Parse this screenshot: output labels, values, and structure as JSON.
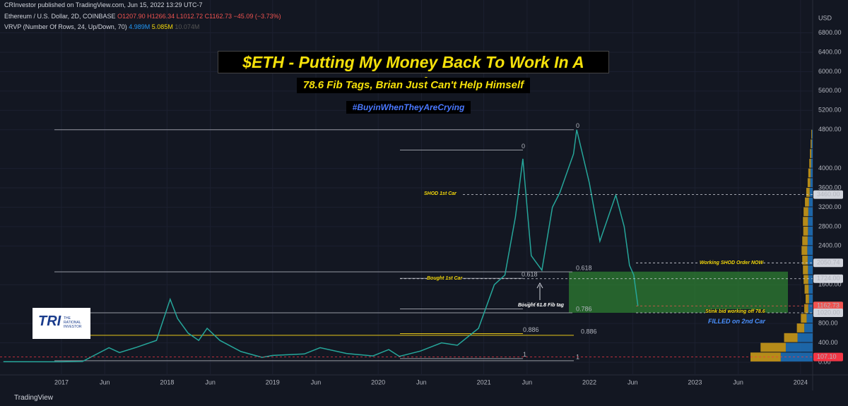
{
  "header": {
    "publisher": "CRInvestor published on TradingView.com, Jun 15, 2022 13:29 UTC-7",
    "symbol": "Ethereum / U.S. Dollar, 2D, COINBASE",
    "ohlc": "O1207.90 H1266.34 L1012.72 C1162.73 −45.09 (−3.73%)",
    "indicator": "VRVP (Number Of Rows, 24, Up/Down, 70)",
    "up_volume": "4.989M",
    "down_volume": "5.085M",
    "total_volume": "10.074M"
  },
  "footer": {
    "brand": "TradingView"
  },
  "logo": {
    "text": "TRI",
    "subtitle": "THE RATIONAL INVESTOR"
  },
  "chart_data": {
    "type": "line",
    "title": "$ETH - Putting My Money Back To Work In A Second Car",
    "subtitle": "78.6 Fib Tags, Brian Just Can't Help Himself",
    "hashtag": "#BuyinWhenTheyAreCrying",
    "y_unit": "USD",
    "annotations": [
      "SHOD 1st Car",
      "Bought 1st Car",
      "Bought 61.8 Fib tag",
      "Working SHOD Order NOW",
      "Stink bid working off 78.6",
      "FILLED on 2nd Car"
    ],
    "xlim": [
      2016.418,
      2024.115
    ],
    "xticks": [
      {
        "value": 2017,
        "label": "2017"
      },
      {
        "value": 2017.41,
        "label": "Jun"
      },
      {
        "value": 2018,
        "label": "2018"
      },
      {
        "value": 2018.41,
        "label": "Jun"
      },
      {
        "value": 2019,
        "label": "2019"
      },
      {
        "value": 2019.41,
        "label": "Jun"
      },
      {
        "value": 2020,
        "label": "2020"
      },
      {
        "value": 2020.41,
        "label": "Jun"
      },
      {
        "value": 2021,
        "label": "2021"
      },
      {
        "value": 2021.41,
        "label": "Jun"
      },
      {
        "value": 2022,
        "label": "2022"
      },
      {
        "value": 2022.41,
        "label": "Jun"
      },
      {
        "value": 2023,
        "label": "2023"
      },
      {
        "value": 2023.41,
        "label": "Jun"
      },
      {
        "value": 2024,
        "label": "2024"
      }
    ],
    "ylim": [
      -219,
      7187
    ],
    "yticks": [
      {
        "value": 0,
        "label": "0.00"
      },
      {
        "value": 400,
        "label": "400.00"
      },
      {
        "value": 800,
        "label": "800.00"
      },
      {
        "value": 1600,
        "label": "1600.00"
      },
      {
        "value": 2400,
        "label": "2400.00"
      },
      {
        "value": 2800,
        "label": "2800.00"
      },
      {
        "value": 3200,
        "label": "3200.00"
      },
      {
        "value": 3600,
        "label": "3600.00"
      },
      {
        "value": 4000,
        "label": "4000.00"
      },
      {
        "value": 4800,
        "label": "4800.00"
      },
      {
        "value": 5200,
        "label": "5200.00"
      },
      {
        "value": 5600,
        "label": "5600.00"
      },
      {
        "value": 6000,
        "label": "6000.00"
      },
      {
        "value": 6400,
        "label": "6400.00"
      },
      {
        "value": 6800,
        "label": "6800.00"
      }
    ],
    "series": [
      {
        "name": "ETHUSD",
        "color": "#26a69a",
        "x": [
          2016.45,
          2017.0,
          2017.2,
          2017.45,
          2017.55,
          2017.7,
          2017.9,
          2018.03,
          2018.1,
          2018.2,
          2018.3,
          2018.38,
          2018.5,
          2018.7,
          2018.9,
          2019.0,
          2019.3,
          2019.45,
          2019.7,
          2019.95,
          2020.1,
          2020.2,
          2020.4,
          2020.6,
          2020.75,
          2020.95,
          2021.1,
          2021.2,
          2021.3,
          2021.37,
          2021.45,
          2021.55,
          2021.65,
          2021.72,
          2021.85,
          2021.88,
          2022.0,
          2022.1,
          2022.25,
          2022.33,
          2022.38,
          2022.42,
          2022.46
        ],
        "values": [
          10,
          8,
          15,
          300,
          200,
          300,
          450,
          1300,
          900,
          600,
          450,
          700,
          450,
          220,
          100,
          140,
          170,
          300,
          180,
          130,
          260,
          120,
          230,
          400,
          350,
          700,
          1600,
          1800,
          3000,
          4200,
          2200,
          1900,
          3200,
          3500,
          4300,
          4800,
          3700,
          2500,
          3450,
          2800,
          2000,
          1800,
          1162.73
        ]
      }
    ],
    "fib_levels": [
      {
        "value": 4800,
        "label": "0"
      },
      {
        "value": 4380,
        "label": "0"
      },
      {
        "value": 1866,
        "label": "0.618"
      },
      {
        "value": 1730,
        "label": "0.618"
      },
      {
        "value": 1020,
        "label": "0.786"
      },
      {
        "value": 1100,
        "label": "0.786"
      },
      {
        "value": 590,
        "label": "0.886",
        "color": "#e6c619"
      },
      {
        "value": 555,
        "label": "0.886",
        "color": "#e6c619"
      },
      {
        "value": 75,
        "label": "1"
      },
      {
        "value": 30,
        "label": "1"
      }
    ],
    "price_labels": [
      {
        "value": 3460,
        "label": "3460.00",
        "color": "#d1d4dc"
      },
      {
        "value": 2050.74,
        "label": "2050.74",
        "color": "#d1d4dc"
      },
      {
        "value": 1724,
        "label": "1724.00",
        "color": "#d1d4dc"
      },
      {
        "value": 1162.73,
        "label": "1162.73",
        "color": "#ef5350"
      },
      {
        "value": 1020,
        "label": "1020.00",
        "color": "#d1d4dc"
      },
      {
        "value": 107.1,
        "label": "107.10",
        "color": "#f23645"
      }
    ],
    "buy_zone": [
      1020,
      1870
    ],
    "volume_profile": {
      "bins": [
        0,
        200,
        400,
        600,
        800,
        1000,
        1200,
        1400,
        1600,
        1800,
        2000,
        2200,
        2400,
        2600,
        2800,
        3000,
        3200,
        3400,
        3600,
        3800,
        4000,
        4200,
        4400,
        4600,
        4800
      ],
      "up": [
        0.9,
        0.75,
        0.4,
        0.22,
        0.17,
        0.12,
        0.1,
        0.12,
        0.14,
        0.15,
        0.16,
        0.17,
        0.16,
        0.14,
        0.15,
        0.14,
        0.12,
        0.1,
        0.08,
        0.07,
        0.05,
        0.04,
        0.03,
        0.02
      ],
      "down": [
        0.95,
        0.8,
        0.45,
        0.25,
        0.18,
        0.13,
        0.11,
        0.12,
        0.13,
        0.14,
        0.15,
        0.16,
        0.15,
        0.14,
        0.14,
        0.13,
        0.11,
        0.09,
        0.07,
        0.06,
        0.05,
        0.04,
        0.03,
        0.02
      ],
      "up_color": "#d4a017",
      "down_color": "#1e73be"
    }
  }
}
